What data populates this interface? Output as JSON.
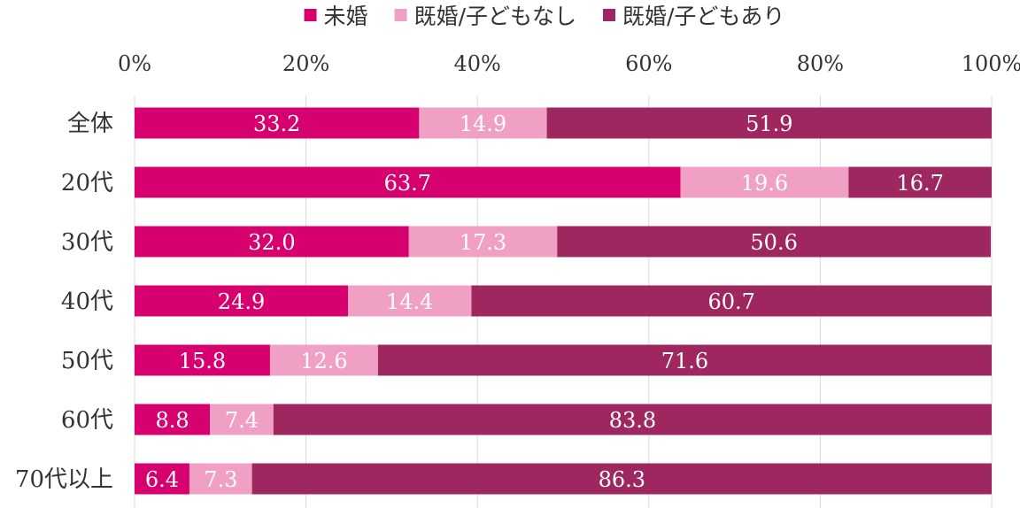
{
  "chart_data": {
    "type": "bar",
    "orientation": "horizontal",
    "stacked": true,
    "categories": [
      "全体",
      "20代",
      "30代",
      "40代",
      "50代",
      "60代",
      "70代以上"
    ],
    "series": [
      {
        "name": "未婚",
        "color": "#d6006f",
        "values": [
          33.2,
          63.7,
          32.0,
          24.9,
          15.8,
          8.8,
          6.4
        ]
      },
      {
        "name": "既婚/子どもなし",
        "color": "#f0a0c4",
        "values": [
          14.9,
          19.6,
          17.3,
          14.4,
          12.6,
          7.4,
          7.3
        ]
      },
      {
        "name": "既婚/子どもあり",
        "color": "#9e2760",
        "values": [
          51.9,
          16.7,
          50.6,
          60.7,
          71.6,
          83.8,
          86.3
        ]
      }
    ],
    "xlim": [
      0,
      100
    ],
    "xticks": [
      "0%",
      "20%",
      "40%",
      "60%",
      "80%",
      "100%"
    ],
    "grid": true,
    "legend_position": "top"
  }
}
